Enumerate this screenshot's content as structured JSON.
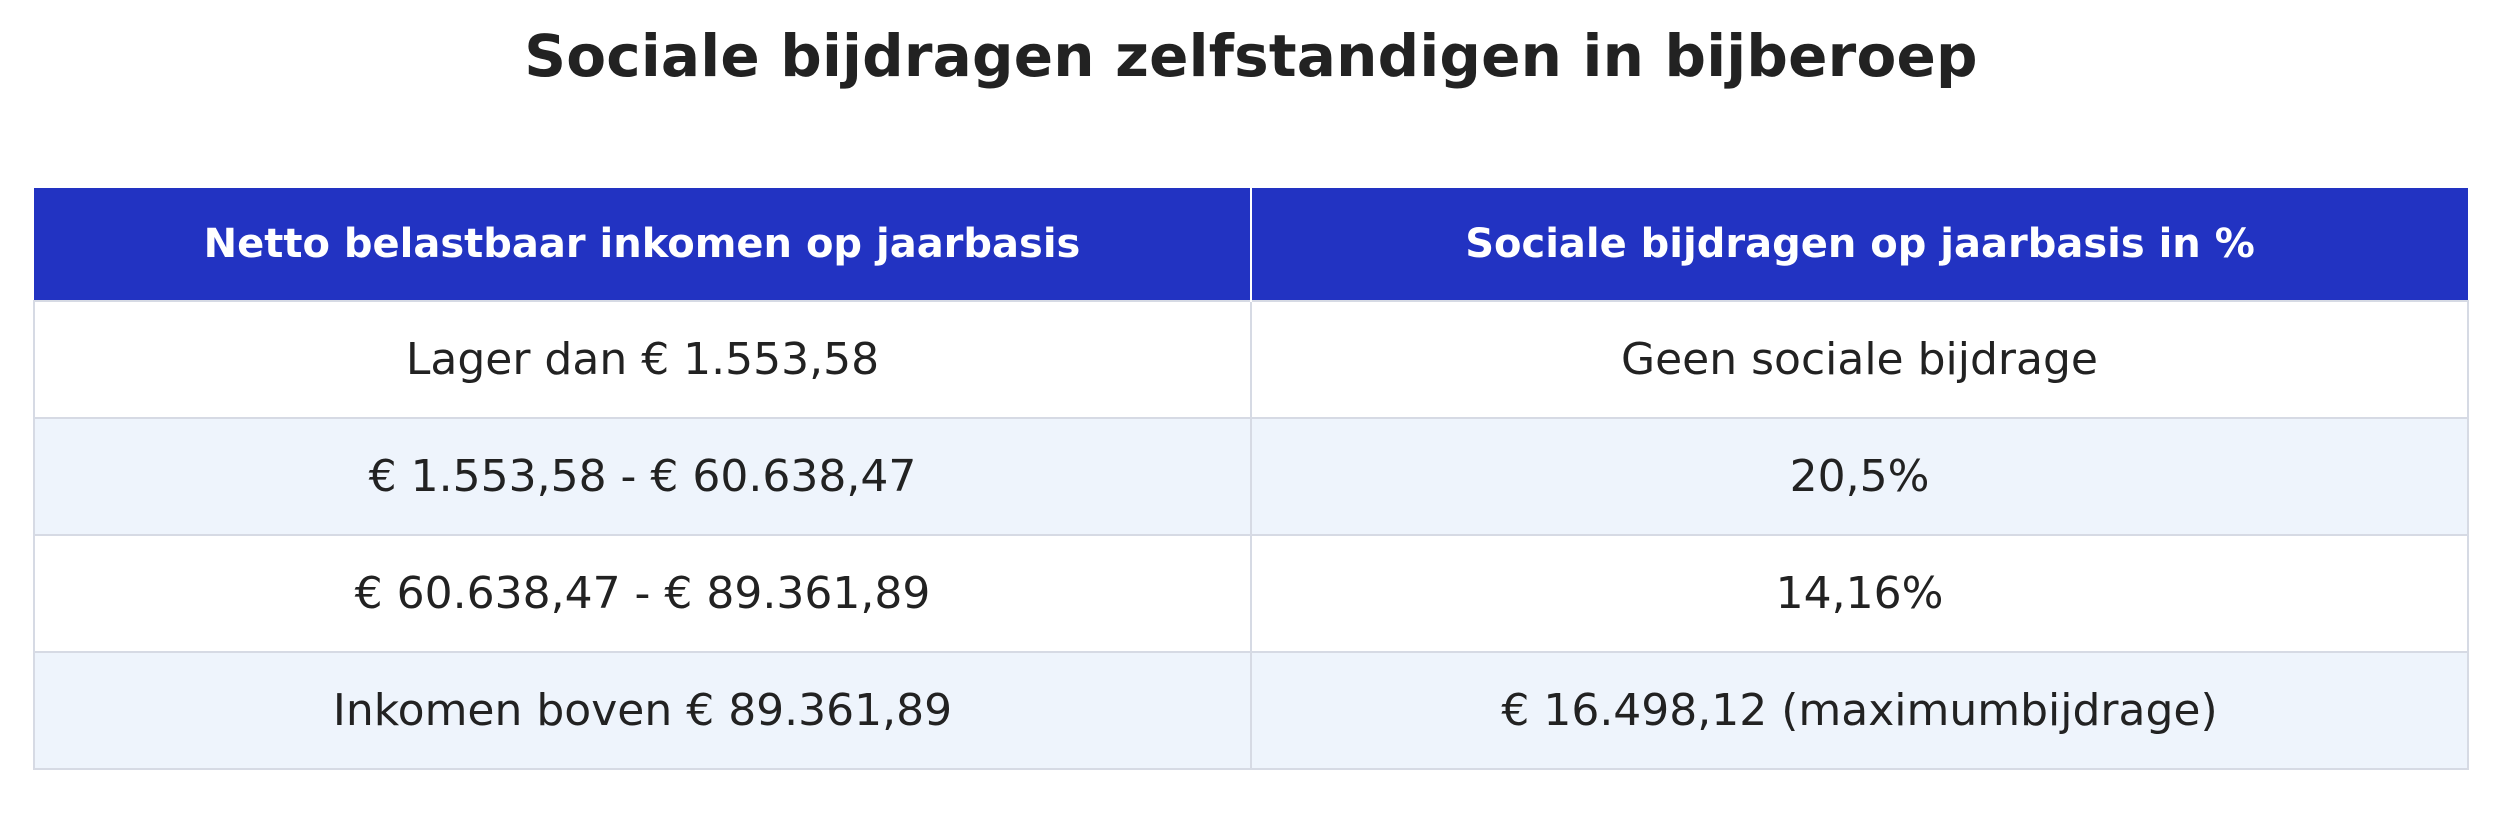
{
  "title": "Sociale bijdragen zelfstandigen in bijberoep",
  "colors": {
    "header_bg": "#2233c2",
    "header_text": "#ffffff",
    "row_alt_bg": "#eef4fc",
    "border": "#d6dae4"
  },
  "table": {
    "headers": [
      "Netto belastbaar inkomen op jaarbasis",
      "Sociale bijdragen op jaarbasis in %"
    ],
    "rows": [
      [
        "Lager dan € 1.553,58",
        "Geen sociale bijdrage"
      ],
      [
        "€ 1.553,58 - € 60.638,47",
        "20,5%"
      ],
      [
        "€ 60.638,47 - € 89.361,89",
        "14,16%"
      ],
      [
        "Inkomen boven € 89.361,89",
        "€ 16.498,12 (maximumbijdrage)"
      ]
    ]
  }
}
